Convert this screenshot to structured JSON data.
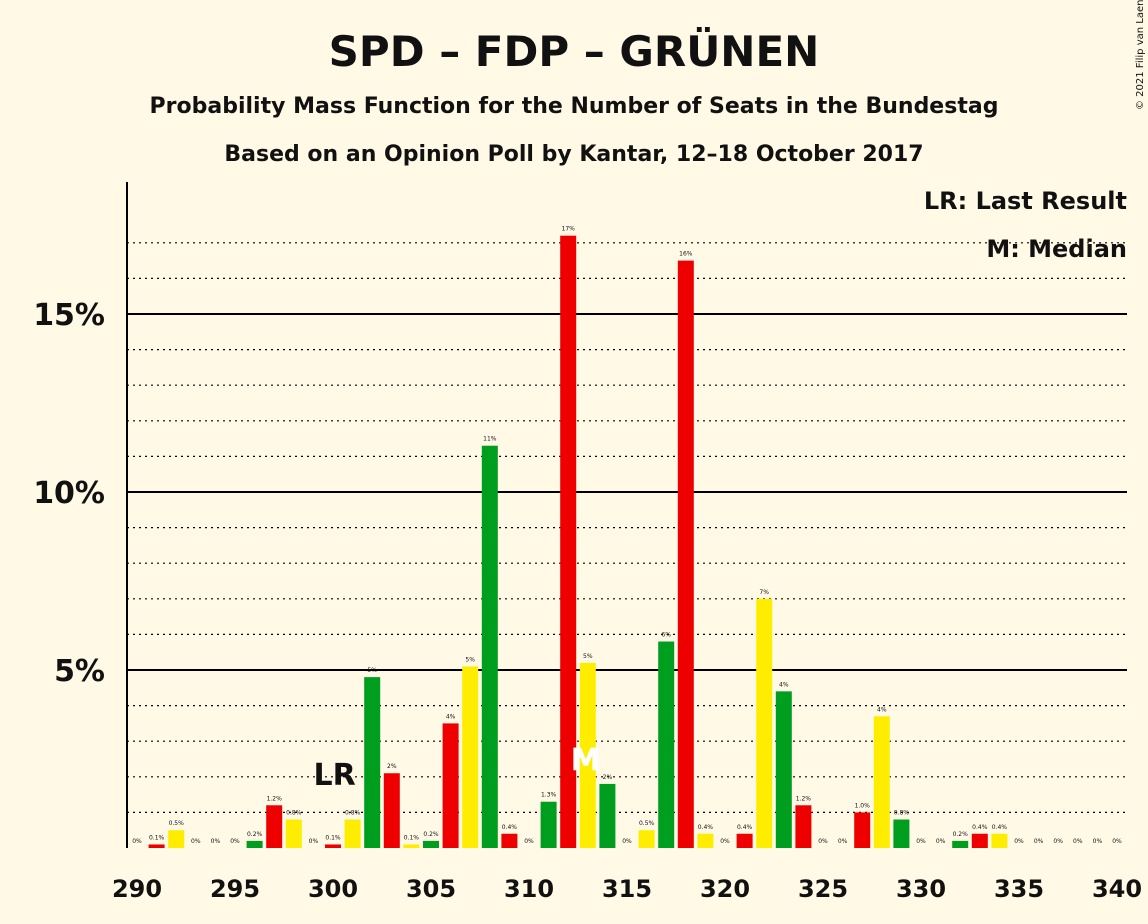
{
  "chart_data": {
    "type": "bar",
    "title": "SPD – FDP – GRÜNEN",
    "subtitle": "Probability Mass Function for the Number of Seats in the Bundestag",
    "subtitle2": "Based on an Opinion Poll by Kantar, 12–18 October 2017",
    "copyright": "© 2021 Filip van Laenen",
    "legend": {
      "position": "top-right",
      "lr": "LR: Last Result",
      "median": "M: Median"
    },
    "markers": {
      "last_result": {
        "seat": 301,
        "label": "LR"
      },
      "median": {
        "seat": 313,
        "label": "M"
      }
    },
    "ylim": [
      0,
      18.5
    ],
    "yticks": [
      {
        "value": 5,
        "label": "5%"
      },
      {
        "value": 10,
        "label": "10%"
      },
      {
        "value": 15,
        "label": "15%"
      }
    ],
    "xticks": [
      290,
      295,
      300,
      305,
      310,
      315,
      320,
      325,
      330,
      335,
      340
    ],
    "colors": {
      "red": "#EE0000",
      "yellow": "#FFED00",
      "green": "#009E1F"
    },
    "bars": [
      {
        "seat": 290,
        "value": 0,
        "label": "0%",
        "color": "green"
      },
      {
        "seat": 291,
        "value": 0.1,
        "label": "0.1%",
        "color": "red"
      },
      {
        "seat": 292,
        "value": 0.5,
        "label": "0.5%",
        "color": "yellow"
      },
      {
        "seat": 293,
        "value": 0,
        "label": "0%",
        "color": "green"
      },
      {
        "seat": 294,
        "value": 0,
        "label": "0%",
        "color": "red"
      },
      {
        "seat": 295,
        "value": 0,
        "label": "0%",
        "color": "yellow"
      },
      {
        "seat": 296,
        "value": 0.2,
        "label": "0.2%",
        "color": "green"
      },
      {
        "seat": 297,
        "value": 1.2,
        "label": "1.2%",
        "color": "red"
      },
      {
        "seat": 298,
        "value": 0.8,
        "label": "0.8%",
        "color": "yellow"
      },
      {
        "seat": 299,
        "value": 0,
        "label": "0%",
        "color": "green"
      },
      {
        "seat": 300,
        "value": 0.1,
        "label": "0.1%",
        "color": "red"
      },
      {
        "seat": 301,
        "value": 0.8,
        "label": "0.8%",
        "color": "yellow"
      },
      {
        "seat": 302,
        "value": 4.8,
        "label": "5%",
        "color": "green"
      },
      {
        "seat": 303,
        "value": 2.1,
        "label": "2%",
        "color": "red"
      },
      {
        "seat": 304,
        "value": 0.1,
        "label": "0.1%",
        "color": "yellow"
      },
      {
        "seat": 305,
        "value": 0.2,
        "label": "0.2%",
        "color": "green"
      },
      {
        "seat": 306,
        "value": 3.5,
        "label": "4%",
        "color": "red"
      },
      {
        "seat": 307,
        "value": 5.1,
        "label": "5%",
        "color": "yellow"
      },
      {
        "seat": 308,
        "value": 11.3,
        "label": "11%",
        "color": "green"
      },
      {
        "seat": 309,
        "value": 0.4,
        "label": "0.4%",
        "color": "red"
      },
      {
        "seat": 310,
        "value": 0,
        "label": "0%",
        "color": "yellow"
      },
      {
        "seat": 311,
        "value": 1.3,
        "label": "1.3%",
        "color": "green"
      },
      {
        "seat": 312,
        "value": 17.2,
        "label": "17%",
        "color": "red"
      },
      {
        "seat": 313,
        "value": 5.2,
        "label": "5%",
        "color": "yellow"
      },
      {
        "seat": 314,
        "value": 1.8,
        "label": "2%",
        "color": "green"
      },
      {
        "seat": 315,
        "value": 0,
        "label": "0%",
        "color": "red"
      },
      {
        "seat": 316,
        "value": 0.5,
        "label": "0.5%",
        "color": "yellow"
      },
      {
        "seat": 317,
        "value": 5.8,
        "label": "6%",
        "color": "green"
      },
      {
        "seat": 318,
        "value": 16.5,
        "label": "16%",
        "color": "red"
      },
      {
        "seat": 319,
        "value": 0.4,
        "label": "0.4%",
        "color": "yellow"
      },
      {
        "seat": 320,
        "value": 0,
        "label": "0%",
        "color": "green"
      },
      {
        "seat": 321,
        "value": 0.4,
        "label": "0.4%",
        "color": "red"
      },
      {
        "seat": 322,
        "value": 7.0,
        "label": "7%",
        "color": "yellow"
      },
      {
        "seat": 323,
        "value": 4.4,
        "label": "4%",
        "color": "green"
      },
      {
        "seat": 324,
        "value": 1.2,
        "label": "1.2%",
        "color": "red"
      },
      {
        "seat": 325,
        "value": 0,
        "label": "0%",
        "color": "yellow"
      },
      {
        "seat": 326,
        "value": 0,
        "label": "0%",
        "color": "green"
      },
      {
        "seat": 327,
        "value": 1.0,
        "label": "1.0%",
        "color": "red"
      },
      {
        "seat": 328,
        "value": 3.7,
        "label": "4%",
        "color": "yellow"
      },
      {
        "seat": 329,
        "value": 0.8,
        "label": "0.8%",
        "color": "green"
      },
      {
        "seat": 330,
        "value": 0,
        "label": "0%",
        "color": "red"
      },
      {
        "seat": 331,
        "value": 0,
        "label": "0%",
        "color": "yellow"
      },
      {
        "seat": 332,
        "value": 0.2,
        "label": "0.2%",
        "color": "green"
      },
      {
        "seat": 333,
        "value": 0.4,
        "label": "0.4%",
        "color": "red"
      },
      {
        "seat": 334,
        "value": 0.4,
        "label": "0.4%",
        "color": "yellow"
      },
      {
        "seat": 335,
        "value": 0,
        "label": "0%",
        "color": "green"
      },
      {
        "seat": 336,
        "value": 0,
        "label": "0%",
        "color": "red"
      },
      {
        "seat": 337,
        "value": 0,
        "label": "0%",
        "color": "yellow"
      },
      {
        "seat": 338,
        "value": 0,
        "label": "0%",
        "color": "green"
      },
      {
        "seat": 339,
        "value": 0,
        "label": "0%",
        "color": "red"
      },
      {
        "seat": 340,
        "value": 0,
        "label": "0%",
        "color": "yellow"
      }
    ]
  }
}
